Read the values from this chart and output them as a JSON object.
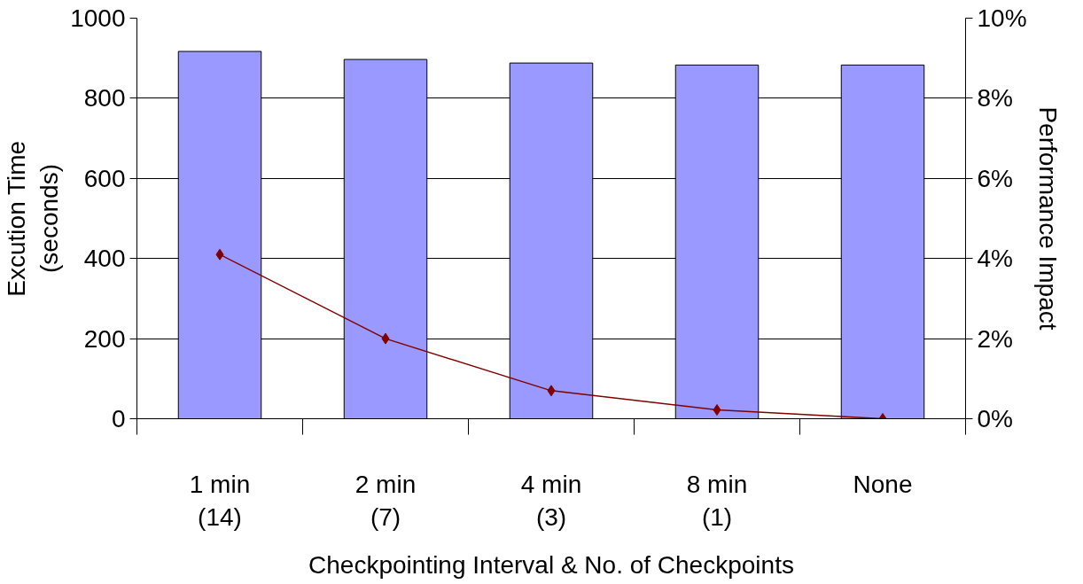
{
  "chart_data": {
    "type": "bar",
    "categories": [
      "1 min\n(14)",
      "2 min\n(7)",
      "4 min\n(3)",
      "8 min\n(1)",
      "None"
    ],
    "xlabel": "Checkpointing Interval & No. of Checkpoints",
    "ylabel": "Excution Time\n(seconds)",
    "y2label": "Performance Impact",
    "ylim": [
      0,
      1000
    ],
    "yticks": [
      0,
      200,
      400,
      600,
      800,
      1000
    ],
    "y2lim": [
      0,
      10
    ],
    "y2ticks": [
      {
        "value": 0,
        "label": "0%"
      },
      {
        "value": 2,
        "label": "2%"
      },
      {
        "value": 4,
        "label": "4%"
      },
      {
        "value": 6,
        "label": "6%"
      },
      {
        "value": 8,
        "label": "8%"
      },
      {
        "value": 10,
        "label": "10%"
      }
    ],
    "grid": "y",
    "series": [
      {
        "color": "#9999ff",
        "values": [
          917,
          897,
          888,
          883,
          883
        ]
      },
      {
        "type": "line",
        "axis": "y2",
        "color": "#800000",
        "marker": "diamond",
        "line_style": "solid",
        "values": [
          4.1,
          2.0,
          0.7,
          0.22,
          0
        ]
      }
    ]
  }
}
